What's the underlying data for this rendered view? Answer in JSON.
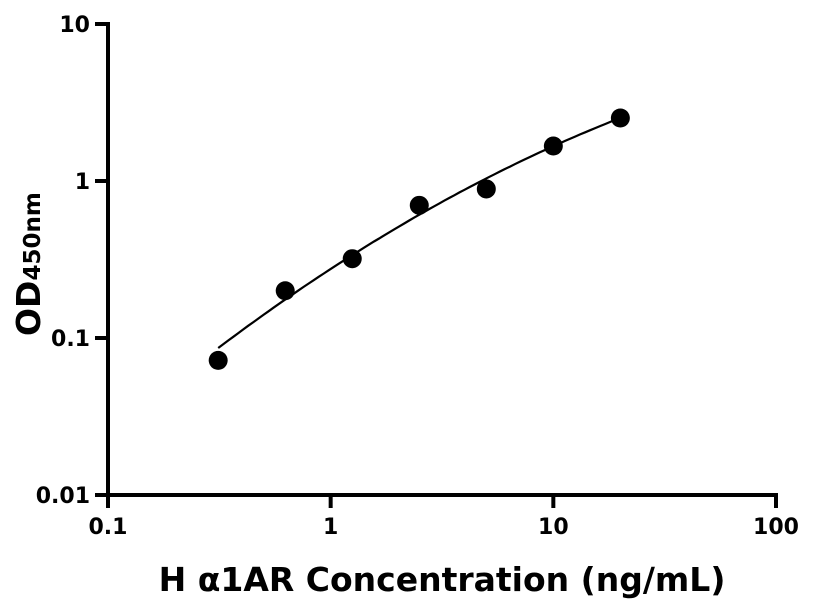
{
  "chart_data": {
    "type": "scatter",
    "title": "",
    "xlabel": "H α1AR Concentration (ng/mL)",
    "ylabel_main": "OD",
    "ylabel_sub": "450nm",
    "x_scale": "log",
    "y_scale": "log",
    "xlim": [
      0.1,
      100
    ],
    "ylim": [
      0.01,
      10
    ],
    "x_ticks": [
      0.1,
      1,
      10,
      100
    ],
    "x_tick_labels": [
      "0.1",
      "1",
      "10",
      "100"
    ],
    "y_ticks": [
      0.01,
      0.1,
      1,
      10
    ],
    "y_tick_labels": [
      "0.01",
      "0.1",
      "1",
      "10"
    ],
    "grid": false,
    "legend": "none",
    "points": {
      "x": [
        0.3125,
        0.625,
        1.25,
        2.5,
        5,
        10,
        20
      ],
      "y": [
        0.072,
        0.2,
        0.32,
        0.7,
        0.89,
        1.67,
        2.52
      ]
    },
    "fit_curve": {
      "x": [
        0.3125,
        3.16,
        20
      ],
      "y": [
        0.0863,
        0.735,
        2.52
      ]
    },
    "colors": {
      "points": "#000000",
      "curve": "#000000",
      "axes": "#000000"
    }
  }
}
